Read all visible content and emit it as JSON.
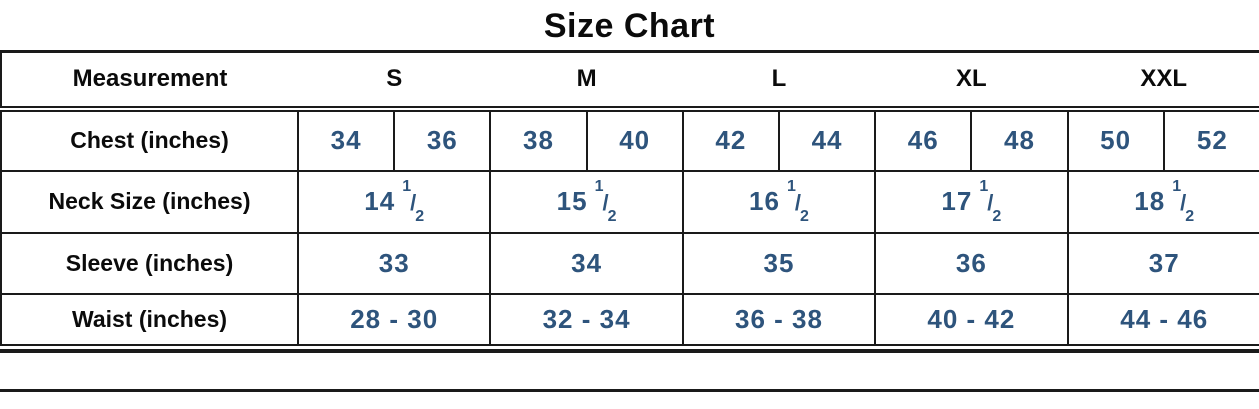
{
  "colors": {
    "value_text": "#2e547c",
    "heading_text": "#0b0b0b",
    "line": "#1a1a1a"
  },
  "chart_data": {
    "type": "table",
    "title": "Size Chart",
    "header": {
      "measurement": "Measurement",
      "sizes": [
        "S",
        "M",
        "L",
        "XL",
        "XXL"
      ]
    },
    "rows": {
      "chest": {
        "label": "Chest (inches)",
        "values": [
          "34",
          "36",
          "38",
          "40",
          "42",
          "44",
          "46",
          "48",
          "50",
          "52"
        ]
      },
      "neck": {
        "label": "Neck Size (inches)",
        "values": [
          {
            "whole": "14",
            "num": "1",
            "sep": "/",
            "den": "2"
          },
          {
            "whole": "15",
            "num": "1",
            "sep": "/",
            "den": "2"
          },
          {
            "whole": "16",
            "num": "1",
            "sep": "/",
            "den": "2"
          },
          {
            "whole": "17",
            "num": "1",
            "sep": "/",
            "den": "2"
          },
          {
            "whole": "18",
            "num": "1",
            "sep": "/",
            "den": "2"
          }
        ]
      },
      "sleeve": {
        "label": "Sleeve (inches)",
        "values": [
          "33",
          "34",
          "35",
          "36",
          "37"
        ]
      },
      "waist": {
        "label": "Waist (inches)",
        "values": [
          "28 - 30",
          "32 - 34",
          "36 - 38",
          "40 - 42",
          "44 - 46"
        ]
      }
    }
  }
}
